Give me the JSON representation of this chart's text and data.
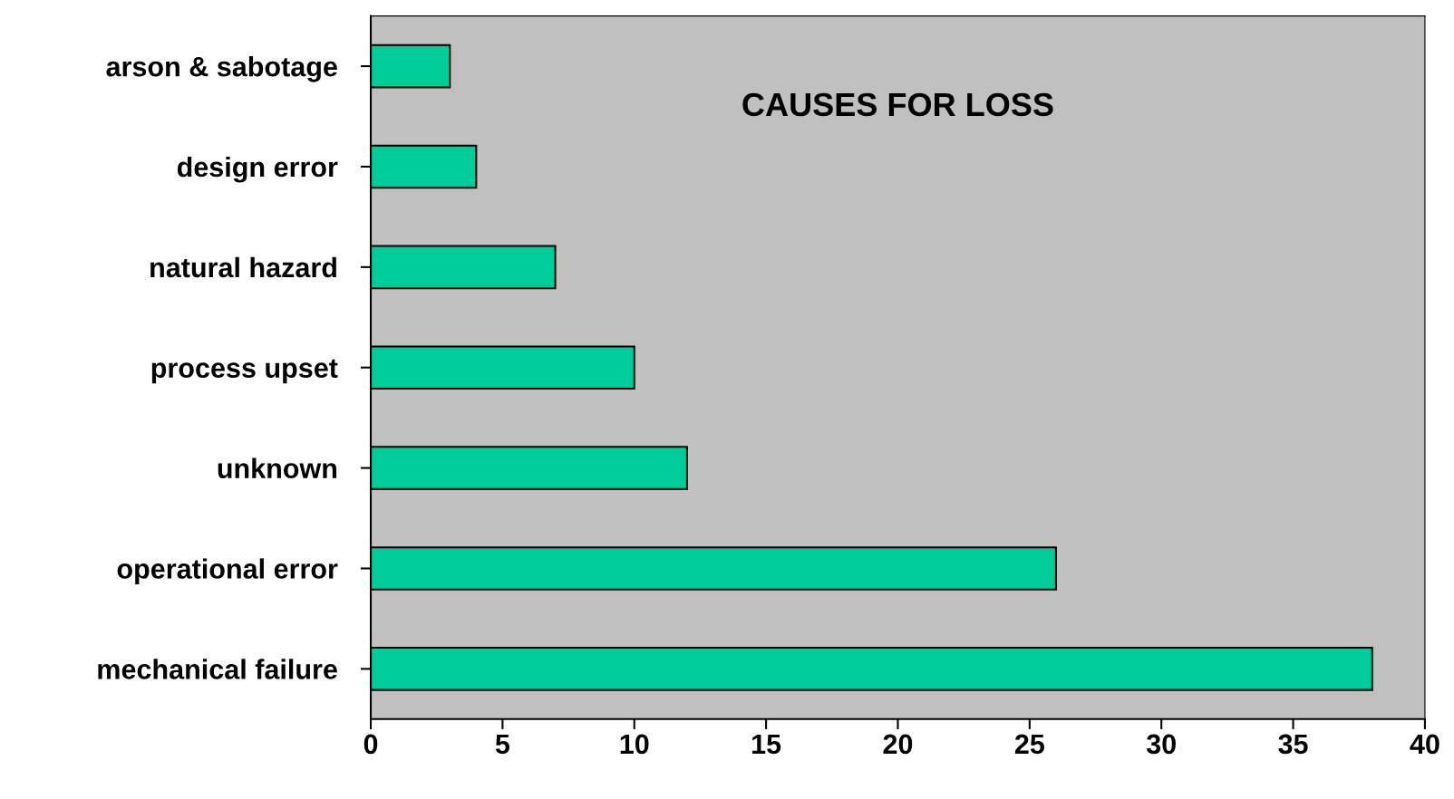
{
  "chart_data": {
    "type": "bar",
    "orientation": "horizontal",
    "title": "CAUSES FOR LOSS",
    "categories": [
      "arson & sabotage",
      "design error",
      "natural hazard",
      "process upset",
      "unknown",
      "operational error",
      "mechanical failure"
    ],
    "values": [
      3,
      4,
      7,
      10,
      12,
      26,
      38
    ],
    "color": "#00cc99",
    "xlim": [
      0,
      40
    ],
    "xticks": [
      0,
      5,
      10,
      15,
      20,
      25,
      30,
      35,
      40
    ],
    "grid": false,
    "legend": false
  }
}
